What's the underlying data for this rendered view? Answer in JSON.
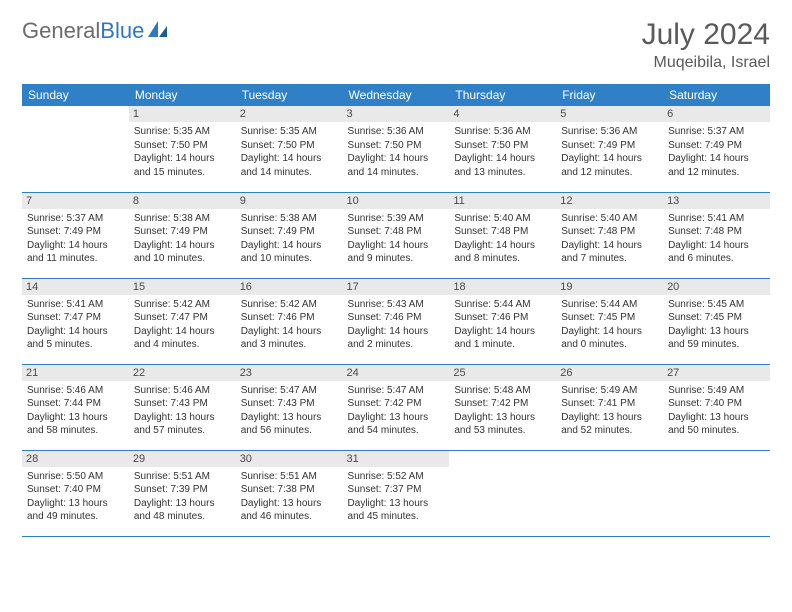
{
  "brand": {
    "part1": "General",
    "part2": "Blue"
  },
  "title": "July 2024",
  "location": "Muqeibila, Israel",
  "colors": {
    "header_bg": "#3080c7",
    "header_text": "#ffffff",
    "daynum_bg": "#e9e9e9",
    "rule": "#3080c7",
    "logo_grey": "#6b6b6b",
    "logo_blue": "#2f78bf"
  },
  "weekdays": [
    "Sunday",
    "Monday",
    "Tuesday",
    "Wednesday",
    "Thursday",
    "Friday",
    "Saturday"
  ],
  "first_weekday_index": 1,
  "days": [
    {
      "n": 1,
      "sunrise": "5:35 AM",
      "sunset": "7:50 PM",
      "daylight": "14 hours and 15 minutes."
    },
    {
      "n": 2,
      "sunrise": "5:35 AM",
      "sunset": "7:50 PM",
      "daylight": "14 hours and 14 minutes."
    },
    {
      "n": 3,
      "sunrise": "5:36 AM",
      "sunset": "7:50 PM",
      "daylight": "14 hours and 14 minutes."
    },
    {
      "n": 4,
      "sunrise": "5:36 AM",
      "sunset": "7:50 PM",
      "daylight": "14 hours and 13 minutes."
    },
    {
      "n": 5,
      "sunrise": "5:36 AM",
      "sunset": "7:49 PM",
      "daylight": "14 hours and 12 minutes."
    },
    {
      "n": 6,
      "sunrise": "5:37 AM",
      "sunset": "7:49 PM",
      "daylight": "14 hours and 12 minutes."
    },
    {
      "n": 7,
      "sunrise": "5:37 AM",
      "sunset": "7:49 PM",
      "daylight": "14 hours and 11 minutes."
    },
    {
      "n": 8,
      "sunrise": "5:38 AM",
      "sunset": "7:49 PM",
      "daylight": "14 hours and 10 minutes."
    },
    {
      "n": 9,
      "sunrise": "5:38 AM",
      "sunset": "7:49 PM",
      "daylight": "14 hours and 10 minutes."
    },
    {
      "n": 10,
      "sunrise": "5:39 AM",
      "sunset": "7:48 PM",
      "daylight": "14 hours and 9 minutes."
    },
    {
      "n": 11,
      "sunrise": "5:40 AM",
      "sunset": "7:48 PM",
      "daylight": "14 hours and 8 minutes."
    },
    {
      "n": 12,
      "sunrise": "5:40 AM",
      "sunset": "7:48 PM",
      "daylight": "14 hours and 7 minutes."
    },
    {
      "n": 13,
      "sunrise": "5:41 AM",
      "sunset": "7:48 PM",
      "daylight": "14 hours and 6 minutes."
    },
    {
      "n": 14,
      "sunrise": "5:41 AM",
      "sunset": "7:47 PM",
      "daylight": "14 hours and 5 minutes."
    },
    {
      "n": 15,
      "sunrise": "5:42 AM",
      "sunset": "7:47 PM",
      "daylight": "14 hours and 4 minutes."
    },
    {
      "n": 16,
      "sunrise": "5:42 AM",
      "sunset": "7:46 PM",
      "daylight": "14 hours and 3 minutes."
    },
    {
      "n": 17,
      "sunrise": "5:43 AM",
      "sunset": "7:46 PM",
      "daylight": "14 hours and 2 minutes."
    },
    {
      "n": 18,
      "sunrise": "5:44 AM",
      "sunset": "7:46 PM",
      "daylight": "14 hours and 1 minute."
    },
    {
      "n": 19,
      "sunrise": "5:44 AM",
      "sunset": "7:45 PM",
      "daylight": "14 hours and 0 minutes."
    },
    {
      "n": 20,
      "sunrise": "5:45 AM",
      "sunset": "7:45 PM",
      "daylight": "13 hours and 59 minutes."
    },
    {
      "n": 21,
      "sunrise": "5:46 AM",
      "sunset": "7:44 PM",
      "daylight": "13 hours and 58 minutes."
    },
    {
      "n": 22,
      "sunrise": "5:46 AM",
      "sunset": "7:43 PM",
      "daylight": "13 hours and 57 minutes."
    },
    {
      "n": 23,
      "sunrise": "5:47 AM",
      "sunset": "7:43 PM",
      "daylight": "13 hours and 56 minutes."
    },
    {
      "n": 24,
      "sunrise": "5:47 AM",
      "sunset": "7:42 PM",
      "daylight": "13 hours and 54 minutes."
    },
    {
      "n": 25,
      "sunrise": "5:48 AM",
      "sunset": "7:42 PM",
      "daylight": "13 hours and 53 minutes."
    },
    {
      "n": 26,
      "sunrise": "5:49 AM",
      "sunset": "7:41 PM",
      "daylight": "13 hours and 52 minutes."
    },
    {
      "n": 27,
      "sunrise": "5:49 AM",
      "sunset": "7:40 PM",
      "daylight": "13 hours and 50 minutes."
    },
    {
      "n": 28,
      "sunrise": "5:50 AM",
      "sunset": "7:40 PM",
      "daylight": "13 hours and 49 minutes."
    },
    {
      "n": 29,
      "sunrise": "5:51 AM",
      "sunset": "7:39 PM",
      "daylight": "13 hours and 48 minutes."
    },
    {
      "n": 30,
      "sunrise": "5:51 AM",
      "sunset": "7:38 PM",
      "daylight": "13 hours and 46 minutes."
    },
    {
      "n": 31,
      "sunrise": "5:52 AM",
      "sunset": "7:37 PM",
      "daylight": "13 hours and 45 minutes."
    }
  ],
  "labels": {
    "sunrise": "Sunrise:",
    "sunset": "Sunset:",
    "daylight": "Daylight:"
  }
}
